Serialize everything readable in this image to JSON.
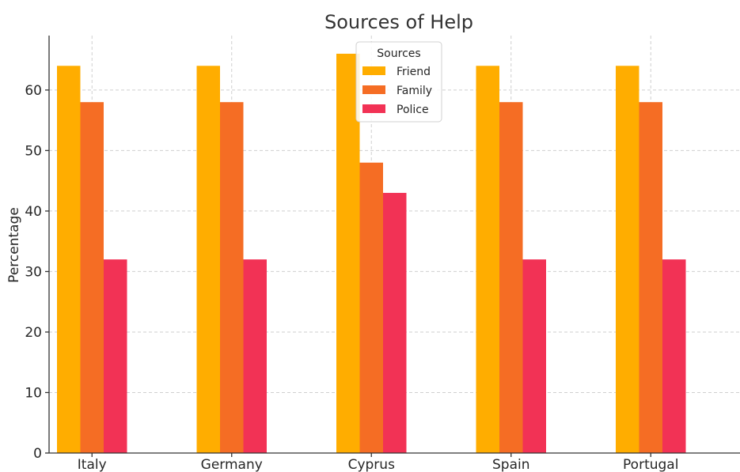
{
  "chart_data": {
    "type": "bar",
    "title": "Sources of Help",
    "xlabel": "",
    "ylabel": "Percentage",
    "categories": [
      "Italy",
      "Germany",
      "Cyprus",
      "Spain",
      "Portugal"
    ],
    "ylim": [
      0,
      69
    ],
    "yticks": [
      0,
      10,
      20,
      30,
      40,
      50,
      60
    ],
    "grid": true,
    "legend": {
      "title": "Sources",
      "placement": "top-center"
    },
    "series": [
      {
        "name": "Friend",
        "color": "#ffad00",
        "values": [
          64,
          64,
          66,
          64,
          64
        ]
      },
      {
        "name": "Family",
        "color": "#f56d24",
        "values": [
          58,
          58,
          48,
          58,
          58
        ]
      },
      {
        "name": "Police",
        "color": "#f23255",
        "values": [
          32,
          32,
          43,
          32,
          32
        ]
      }
    ]
  }
}
